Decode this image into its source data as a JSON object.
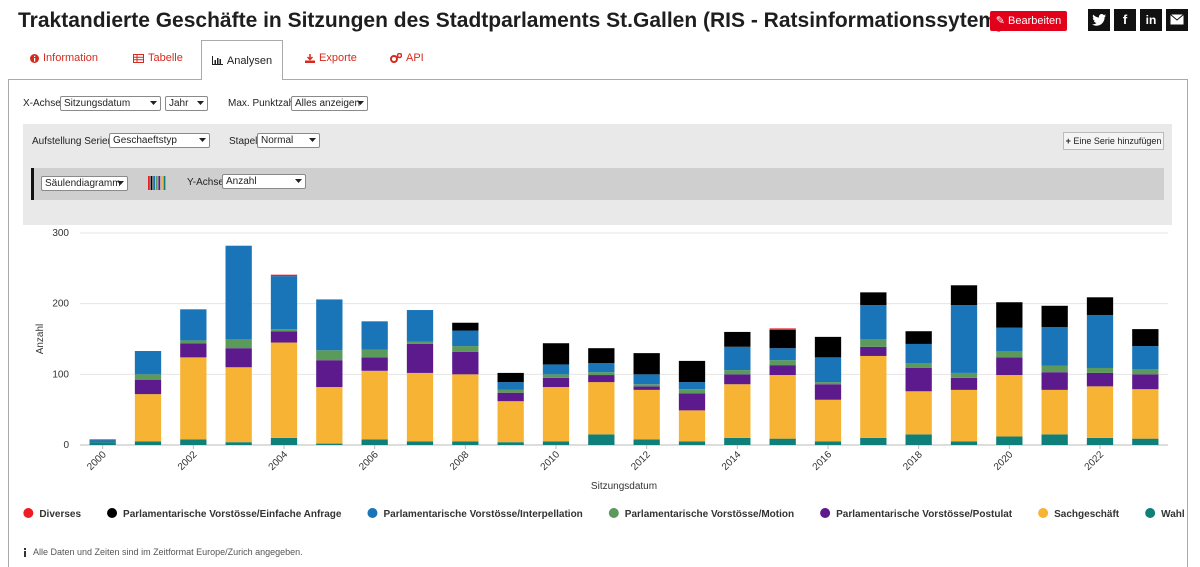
{
  "header": {
    "title": "Traktandierte Geschäfte in Sitzungen des Stadtparlaments St.Gallen (RIS - Ratsinformationssytem)",
    "edit_button": "Bearbeiten",
    "share": [
      "f",
      "in"
    ]
  },
  "tabs": [
    "Information",
    "Tabelle",
    "Analysen",
    "Exporte",
    "API"
  ],
  "controls": {
    "x_axis_label": "X-Achse",
    "x_axis_field": "Sitzungsdatum",
    "x_axis_unit": "Jahr",
    "max_points_label": "Max. Punktzahl",
    "max_points": "Alles anzeigen",
    "series_label": "Aufstellung Serien",
    "series_field": "Geschaeftstyp",
    "stack_label": "Stapel",
    "stack": "Normal",
    "add_series": "Eine Serie hinzufügen",
    "chart_kind": "Säulendiagramm",
    "y_axis_label": "Y-Achse",
    "y_axis_field": "Anzahl"
  },
  "chart_data": {
    "type": "bar",
    "stacked": true,
    "x_label": "Sitzungsdatum",
    "y_label": "Anzahl",
    "x": [
      2000,
      2001,
      2002,
      2003,
      2004,
      2005,
      2006,
      2007,
      2008,
      2009,
      2010,
      2011,
      2012,
      2013,
      2014,
      2015,
      2016,
      2017,
      2018,
      2019,
      2020,
      2021,
      2022,
      2023
    ],
    "xlim": [
      1999.5,
      2023.5
    ],
    "xticks": [
      2000,
      2002,
      2004,
      2006,
      2008,
      2010,
      2012,
      2014,
      2016,
      2018,
      2020,
      2022
    ],
    "ylim": [
      0,
      300
    ],
    "yticks": [
      0,
      100,
      200,
      300
    ],
    "grid": true,
    "series": [
      {
        "name": "Diverses",
        "color": "#ee1c25",
        "values": [
          1,
          0,
          0,
          0,
          2,
          0,
          0,
          0,
          0,
          0,
          0,
          0,
          0,
          0,
          0,
          2,
          0,
          0,
          0,
          0,
          0,
          0,
          0,
          0
        ]
      },
      {
        "name": "Parlamentarische Vorstösse/Einfache Anfrage",
        "color": "#000000",
        "values": [
          0,
          0,
          0,
          0,
          0,
          0,
          0,
          0,
          11,
          13,
          30,
          21,
          30,
          30,
          21,
          26,
          29,
          18,
          18,
          28,
          36,
          30,
          25,
          24
        ]
      },
      {
        "name": "Parlamentarische Vorstösse/Interpellation",
        "color": "#1a74b8",
        "values": [
          3,
          33,
          44,
          132,
          75,
          72,
          40,
          45,
          22,
          11,
          14,
          13,
          14,
          10,
          33,
          17,
          35,
          48,
          27,
          96,
          33,
          55,
          75,
          33
        ]
      },
      {
        "name": "Parlamentarische Vorstösse/Motion",
        "color": "#5b9a5b",
        "values": [
          0,
          8,
          4,
          13,
          3,
          14,
          11,
          3,
          8,
          4,
          5,
          4,
          3,
          6,
          6,
          7,
          3,
          11,
          7,
          7,
          9,
          9,
          7,
          7
        ]
      },
      {
        "name": "Parlamentarische Vorstösse/Postulat",
        "color": "#5c1a8c",
        "values": [
          0,
          20,
          20,
          27,
          16,
          38,
          19,
          41,
          32,
          12,
          13,
          10,
          5,
          24,
          14,
          14,
          22,
          13,
          33,
          17,
          25,
          25,
          19,
          21
        ]
      },
      {
        "name": "Sachgeschäft",
        "color": "#f7b334",
        "values": [
          0,
          67,
          116,
          106,
          135,
          80,
          97,
          97,
          95,
          58,
          77,
          74,
          70,
          44,
          76,
          90,
          59,
          116,
          61,
          73,
          87,
          63,
          73,
          70
        ]
      },
      {
        "name": "Wahl",
        "color": "#0f7f7a",
        "values": [
          4,
          5,
          8,
          4,
          10,
          2,
          8,
          5,
          5,
          4,
          5,
          15,
          8,
          5,
          10,
          9,
          5,
          10,
          15,
          5,
          12,
          15,
          10,
          9
        ]
      }
    ]
  },
  "footer": {
    "note": "Alle Daten und Zeiten sind im Zeitformat Europe/Zurich angegeben."
  }
}
